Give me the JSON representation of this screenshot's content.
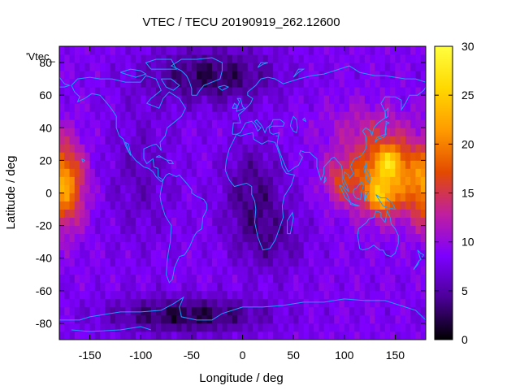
{
  "chart_data": {
    "type": "heatmap",
    "title": "VTEC / TECU 20190919_262.12600",
    "xlabel": "Longitude / deg",
    "ylabel": "Latitude / deg",
    "legend_text": "'Vtec_",
    "xlim": [
      -180,
      180
    ],
    "ylim": [
      -90,
      90
    ],
    "x_ticks": [
      -150,
      -100,
      -50,
      0,
      50,
      100,
      150
    ],
    "y_ticks": [
      -80,
      -60,
      -40,
      -20,
      0,
      20,
      40,
      60,
      80
    ],
    "colorbar": {
      "range": [
        0,
        30
      ],
      "ticks": [
        0,
        5,
        10,
        15,
        20,
        25,
        30
      ],
      "palette": [
        "#000000",
        "#4b0096",
        "#7d00ff",
        "#c01f9e",
        "#e34b00",
        "#ff9b00",
        "#ffd800",
        "#ffff40"
      ]
    },
    "coastline_color": "#1e9bff",
    "grid_resolution_deg": [
      5,
      5
    ],
    "field_features": [
      {
        "lon": -170,
        "lat": 5,
        "value": 22
      },
      {
        "lon": 135,
        "lat": 10,
        "value": 24
      },
      {
        "lon": 145,
        "lat": 20,
        "value": 26
      },
      {
        "lon": 135,
        "lat": -5,
        "value": 27
      },
      {
        "lon": 95,
        "lat": 8,
        "value": 17
      },
      {
        "lon": -30,
        "lat": 70,
        "value": 1
      },
      {
        "lon": -60,
        "lat": -75,
        "value": 1
      },
      {
        "lon": 20,
        "lat": -5,
        "value": 3
      },
      {
        "lon": 0,
        "lat": 0,
        "value": 3
      }
    ]
  }
}
